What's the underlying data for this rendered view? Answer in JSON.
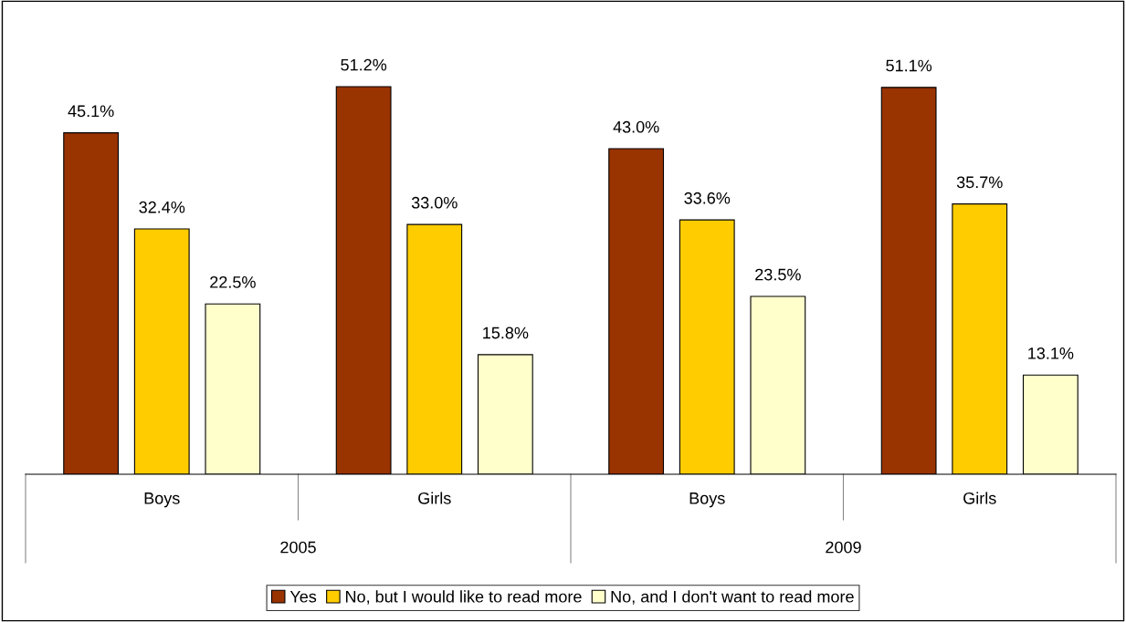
{
  "chart_data": {
    "type": "bar",
    "categories": [
      "Boys",
      "Girls",
      "Boys",
      "Girls"
    ],
    "series": [
      {
        "name": "Yes",
        "color": "#993300",
        "values": [
          45.1,
          51.2,
          43.0,
          51.1
        ],
        "value_labels": [
          "45.1%",
          "51.2%",
          "43.0%",
          "51.1%"
        ]
      },
      {
        "name": "No, but I would like to read more",
        "color": "#ffcc00",
        "values": [
          32.4,
          33.0,
          33.6,
          35.7
        ],
        "value_labels": [
          "32.4%",
          "33.0%",
          "33.6%",
          "35.7%"
        ]
      },
      {
        "name": "No, and I don't want to read more",
        "color": "#ffffcc",
        "values": [
          22.5,
          15.8,
          23.5,
          13.1
        ],
        "value_labels": [
          "22.5%",
          "15.8%",
          "23.5%",
          "13.1%"
        ]
      }
    ],
    "annotations": [
      "2005",
      "2009"
    ],
    "legend": "bottom",
    "grid": false
  }
}
